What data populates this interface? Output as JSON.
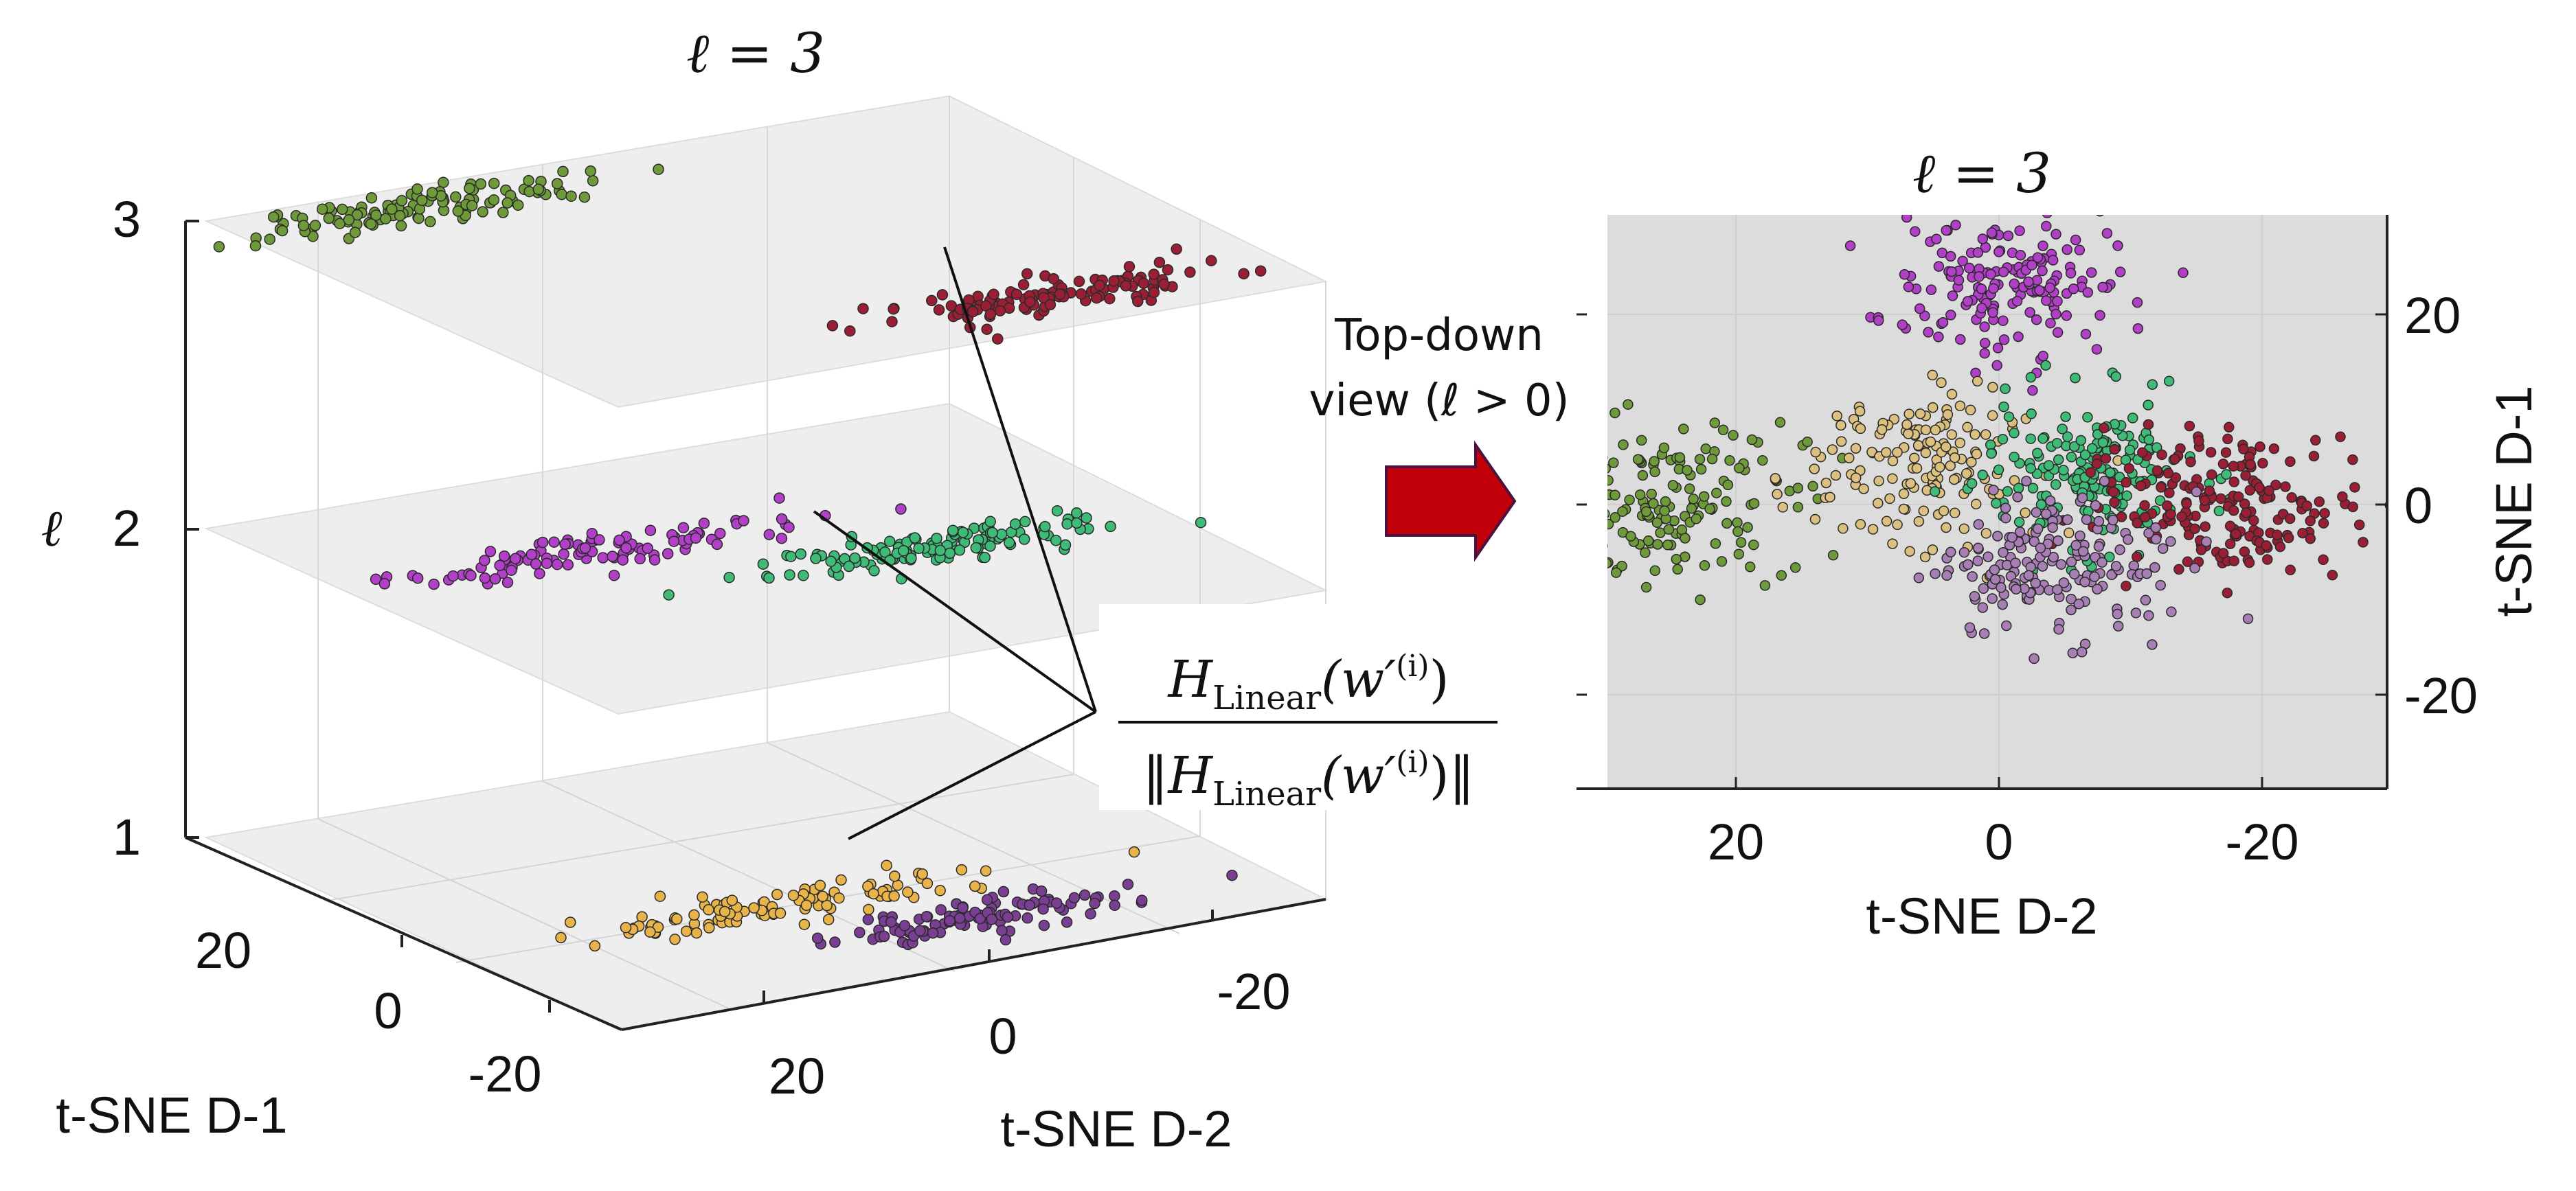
{
  "colors": {
    "olive": "#6f9a3a",
    "magenta": "#b23fc7",
    "teal_green": "#3fbb78",
    "dark_red": "#9a1f34",
    "gold": "#e8b44a",
    "purple": "#7a3f93",
    "tan": "#dcc07f",
    "mauve": "#a77fb5",
    "arrow_red": "#c1000a",
    "arrow_edge": "#5a1a5a",
    "plane": "#ececec",
    "top_bg": "#dcdcdc"
  },
  "left_title": "ℓ = 3",
  "right_title": "ℓ = 3",
  "annotation": {
    "line1": "Top-down",
    "line2": "view (ℓ > 0)"
  },
  "formula": {
    "num_prefix": "H",
    "num_sub": "Linear",
    "num_arg": "(w′",
    "num_sup": "(i)",
    "num_close": ")",
    "den_open": "‖",
    "den_close": "‖"
  },
  "chart_data": [
    {
      "type": "scatter",
      "title": "ℓ = 3",
      "projection": "3d",
      "xlabel": "t-SNE D-1",
      "ylabel": "t-SNE D-2",
      "zlabel": "ℓ",
      "x_ticks": [
        "20",
        "0",
        "-20"
      ],
      "y_ticks": [
        "20",
        "0",
        "-20"
      ],
      "z_ticks": [
        "1",
        "2",
        "3"
      ],
      "xlim": [
        -30,
        30
      ],
      "ylim": [
        -30,
        30
      ],
      "zlim": [
        1,
        3
      ],
      "grid": true,
      "series": [
        {
          "name": "layer3-olive",
          "color_key": "olive",
          "z": 3,
          "d1": 25,
          "d2": 15,
          "n": 120
        },
        {
          "name": "layer3-darkred",
          "color_key": "dark_red",
          "z": 3,
          "d1": -20,
          "d2": -10,
          "n": 120
        },
        {
          "name": "layer2-magenta",
          "color_key": "magenta",
          "z": 2,
          "d1": 10,
          "d2": 10,
          "n": 110
        },
        {
          "name": "layer2-green",
          "color_key": "teal_green",
          "z": 2,
          "d1": -2,
          "d2": -12,
          "n": 130
        },
        {
          "name": "layer1-gold",
          "color_key": "gold",
          "z": 1,
          "d1": -8,
          "d2": 5,
          "n": 110
        },
        {
          "name": "layer1-purple",
          "color_key": "purple",
          "z": 1,
          "d1": -18,
          "d2": -6,
          "n": 110
        }
      ]
    },
    {
      "type": "scatter",
      "title": "ℓ = 3",
      "xlabel": "t-SNE D-2",
      "ylabel": "t-SNE D-1",
      "x_ticks": [
        "20",
        "0",
        "-20"
      ],
      "y_ticks": [
        "20",
        "0",
        "-20"
      ],
      "xlim": [
        30,
        -30
      ],
      "ylim": [
        -30,
        30
      ],
      "grid": true,
      "series": [
        {
          "name": "olive",
          "color_key": "olive",
          "cx": 25,
          "cy": 0,
          "sx": 5,
          "sy": 4.5,
          "n": 180
        },
        {
          "name": "magenta",
          "color_key": "magenta",
          "cx": -0.5,
          "cy": 23,
          "sx": 4.5,
          "sy": 3.5,
          "n": 170
        },
        {
          "name": "tan",
          "color_key": "tan",
          "cx": 6,
          "cy": 4,
          "sx": 4,
          "sy": 4,
          "n": 160
        },
        {
          "name": "green",
          "color_key": "teal_green",
          "cx": -7,
          "cy": 3,
          "sx": 4,
          "sy": 4,
          "n": 180
        },
        {
          "name": "dark-red",
          "color_key": "dark_red",
          "cx": -18,
          "cy": 0,
          "sx": 5,
          "sy": 4,
          "n": 200
        },
        {
          "name": "mauve",
          "color_key": "mauve",
          "cx": -4,
          "cy": -6,
          "sx": 4.5,
          "sy": 4,
          "n": 170
        }
      ]
    }
  ]
}
